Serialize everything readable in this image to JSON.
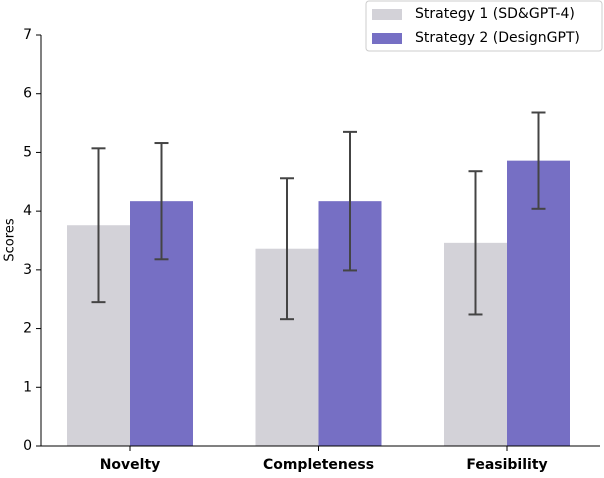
{
  "chart_data": {
    "type": "bar",
    "y_label": "Scores",
    "categories": [
      "Novelty",
      "Completeness",
      "Feasibility"
    ],
    "series": [
      {
        "name": "Strategy 1 (SD&GPT-4)",
        "color": "#d3d2d8",
        "values": [
          3.76,
          3.36,
          3.46
        ],
        "errors": [
          1.31,
          1.2,
          1.22
        ]
      },
      {
        "name": "Strategy 2 (DesignGPT)",
        "color": "#766fc4",
        "values": [
          4.17,
          4.17,
          4.86
        ],
        "errors": [
          0.99,
          1.18,
          0.82
        ]
      }
    ],
    "ylim": [
      0,
      7
    ],
    "yticks": [
      0,
      1,
      2,
      3,
      4,
      5,
      6,
      7
    ],
    "legend": "upper right"
  }
}
